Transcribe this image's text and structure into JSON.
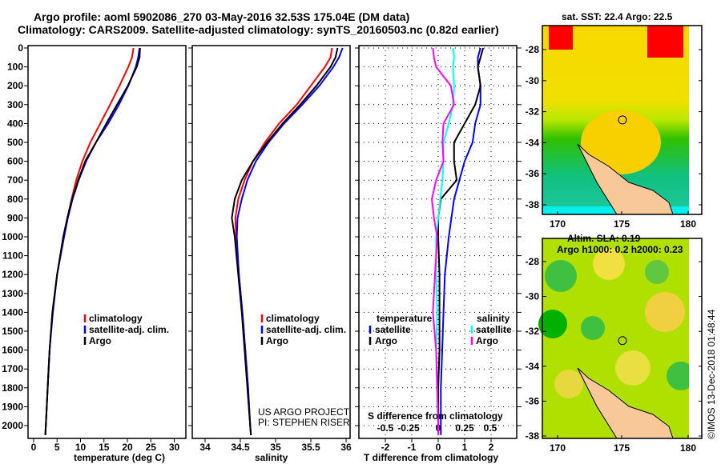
{
  "title_line1": "Argo profile: aoml 5902086_270 03-May-2016 32.53S 175.04E (DM data)",
  "title_line2": "Climatology: CARS2009. Satellite-adjusted climatology: synTS_20160503.nc (0.82d earlier)",
  "credit": "©IMOS 13-Dec-2018 01:48:44",
  "project_line1": "US ARGO PROJECT",
  "project_line2": "PI: STEPHEN RISER",
  "colors": {
    "climatology": "#ff0000",
    "satellite": "#0000ff",
    "argo": "#000000",
    "sal_satellite": "#00ffff",
    "sal_argo": "#ff00ff"
  },
  "chart_data": [
    {
      "type": "line",
      "xlabel": "temperature (deg C)",
      "ylabel": "depth",
      "xlim": [
        -1,
        32
      ],
      "ylim": [
        2060,
        0
      ],
      "xticks": [
        0,
        5,
        10,
        15,
        20,
        25,
        30
      ],
      "yticks": [
        0,
        100,
        200,
        300,
        400,
        500,
        600,
        700,
        800,
        900,
        1000,
        1100,
        1200,
        1300,
        1400,
        1500,
        1600,
        1700,
        1800,
        1900,
        2000
      ],
      "depth": [
        0,
        50,
        100,
        200,
        300,
        400,
        500,
        600,
        700,
        800,
        900,
        1000,
        1200,
        1400,
        1600,
        1800,
        2000,
        2050
      ],
      "legend": [
        "climatology",
        "satellite-adj. clim.",
        "Argo"
      ],
      "series": [
        {
          "name": "climatology",
          "color": "#ff0000",
          "values": [
            21.3,
            21,
            20.2,
            18.3,
            16.3,
            14.2,
            12.1,
            10.4,
            9.1,
            8.1,
            7.2,
            6.4,
            5.0,
            4.0,
            3.4,
            3.0,
            2.6,
            2.5
          ]
        },
        {
          "name": "satellite-adj. clim.",
          "color": "#0000ff",
          "values": [
            22.6,
            22.3,
            21.8,
            20.2,
            18.2,
            15.9,
            13.3,
            11.2,
            9.6,
            8.3,
            7.3,
            6.5,
            5.0,
            4.1,
            3.4,
            3.0,
            2.6,
            2.5
          ]
        },
        {
          "name": "Argo",
          "color": "#000000",
          "values": [
            22.7,
            22.6,
            22.0,
            20.1,
            17.8,
            15.5,
            13.3,
            11.0,
            9.5,
            8.2,
            7.2,
            6.3,
            5.0,
            4.0,
            3.4,
            3.0,
            2.6,
            2.5
          ]
        }
      ]
    },
    {
      "type": "line",
      "xlabel": "salinity",
      "xlim": [
        33.8,
        36.05
      ],
      "ylim": [
        2060,
        0
      ],
      "xticks": [
        34,
        34.5,
        35,
        35.5,
        36
      ],
      "depth": [
        0,
        50,
        100,
        200,
        300,
        400,
        500,
        600,
        700,
        800,
        900,
        1000,
        1200,
        1400,
        1600,
        1800,
        2000,
        2050
      ],
      "legend": [
        "climatology",
        "satellite-adj. clim.",
        "Argo"
      ],
      "series": [
        {
          "name": "climatology",
          "color": "#ff0000",
          "values": [
            35.8,
            35.78,
            35.7,
            35.5,
            35.3,
            35.05,
            34.85,
            34.68,
            34.56,
            34.47,
            34.43,
            34.44,
            34.48,
            34.53,
            34.57,
            34.61,
            34.64,
            34.65
          ]
        },
        {
          "name": "satellite-adj. clim.",
          "color": "#0000ff",
          "values": [
            35.95,
            35.9,
            35.82,
            35.62,
            35.38,
            35.12,
            34.9,
            34.72,
            34.6,
            34.52,
            34.46,
            34.45,
            34.48,
            34.53,
            34.57,
            34.61,
            34.64,
            34.65
          ]
        },
        {
          "name": "Argo",
          "color": "#000000",
          "values": [
            35.88,
            35.85,
            35.78,
            35.58,
            35.35,
            35.1,
            34.88,
            34.68,
            34.52,
            34.42,
            34.38,
            34.42,
            34.47,
            34.52,
            34.56,
            34.6,
            34.64,
            34.65
          ]
        }
      ]
    },
    {
      "type": "line",
      "xlabel": "T difference from climatology",
      "x2label": "S difference from climatology",
      "xlim": [
        -3,
        3
      ],
      "ylim": [
        2060,
        0
      ],
      "xticks": [
        -2,
        -1,
        0,
        1,
        2
      ],
      "x2ticks": [
        "-0.5",
        "-0.25",
        "0",
        "0.25",
        "0.5"
      ],
      "depth": [
        0,
        50,
        100,
        200,
        300,
        400,
        500,
        600,
        700,
        800,
        900,
        1000,
        1200,
        1400,
        1600,
        1800,
        2000,
        2050
      ],
      "legend_temperature_title": "temperature",
      "legend_salinity_title": "salinity",
      "legend_temperature": [
        "satellite",
        "Argo"
      ],
      "legend_salinity": [
        "satellite",
        "Argo"
      ],
      "series": [
        {
          "name": "T satellite",
          "color": "#0000ff",
          "scale": "T",
          "values": [
            1.6,
            1.5,
            1.5,
            1.6,
            1.6,
            1.4,
            1.3,
            1.0,
            0.8,
            0.6,
            0.5,
            0.4,
            0.25,
            0.2,
            0.15,
            0.1,
            0.1,
            0.1
          ]
        },
        {
          "name": "T Argo",
          "color": "#000000",
          "scale": "T",
          "values": [
            1.7,
            1.6,
            1.5,
            1.6,
            1.4,
            1.0,
            0.6,
            0.6,
            0.7,
            0.1,
            0.0,
            0.0,
            0.05,
            0.05,
            0.05,
            0.0,
            0.0,
            0.0
          ]
        },
        {
          "name": "S satellite",
          "color": "#00ffff",
          "scale": "S",
          "values": [
            0.14,
            0.15,
            0.14,
            0.15,
            0.14,
            0.1,
            0.05,
            0.05,
            0.04,
            0.02,
            0.0,
            -0.02,
            -0.02,
            -0.01,
            -0.02,
            -0.01,
            0.0,
            0.0
          ]
        },
        {
          "name": "S Argo",
          "color": "#ff00ff",
          "scale": "S",
          "values": [
            -0.05,
            -0.04,
            -0.02,
            0.12,
            0.15,
            0.05,
            0.04,
            0.05,
            -0.02,
            -0.06,
            -0.04,
            -0.01,
            -0.03,
            -0.05,
            -0.02,
            -0.01,
            0.0,
            0.0
          ]
        }
      ]
    }
  ],
  "maps": [
    {
      "title": "sat. SST: 22.4 Argo: 22.5",
      "lat_ticks": [
        "-28",
        "-30",
        "-32",
        "-34",
        "-36",
        "-38"
      ],
      "lon_ticks": [
        "170",
        "175",
        "180"
      ]
    },
    {
      "title_line1": "Altim. SLA: 0.19",
      "title_line2": "Argo h1000: 0.2 h2000: 0.23",
      "lat_ticks": [
        "-28",
        "-30",
        "-32",
        "-34",
        "-36",
        "-38"
      ],
      "lon_ticks": [
        "170",
        "175",
        "180"
      ]
    }
  ]
}
